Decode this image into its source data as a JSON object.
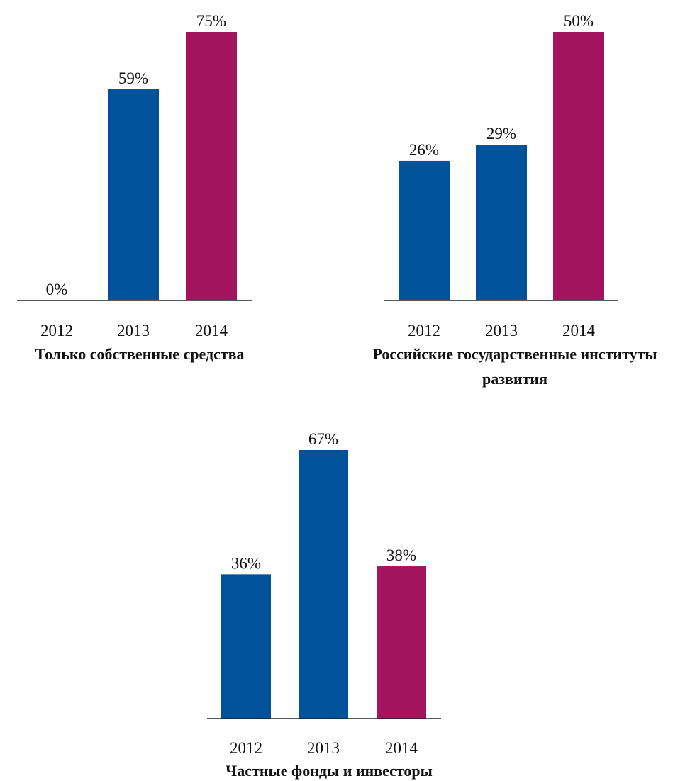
{
  "chart_data": [
    {
      "type": "bar",
      "title_lines": [
        "Только собственные средства"
      ],
      "categories": [
        "2012",
        "2013",
        "2014"
      ],
      "values": [
        0,
        59,
        75
      ],
      "value_labels": [
        "0%",
        "59%",
        "75%"
      ],
      "bar_colors": [
        "#00529b",
        "#00529b",
        "#a3145f"
      ],
      "ylim": [
        0,
        75
      ],
      "grid": false,
      "legend": "none"
    },
    {
      "type": "bar",
      "title_lines": [
        "Российские государственные институты",
        "развития"
      ],
      "categories": [
        "2012",
        "2013",
        "2014"
      ],
      "values": [
        26,
        29,
        50
      ],
      "value_labels": [
        "26%",
        "29%",
        "50%"
      ],
      "bar_colors": [
        "#00529b",
        "#00529b",
        "#a3145f"
      ],
      "ylim": [
        0,
        50
      ],
      "grid": false,
      "legend": "none"
    },
    {
      "type": "bar",
      "title_lines": [
        "Частные фонды и инвесторы"
      ],
      "categories": [
        "2012",
        "2013",
        "2014"
      ],
      "values": [
        36,
        67,
        38
      ],
      "value_labels": [
        "36%",
        "67%",
        "38%"
      ],
      "bar_colors": [
        "#00529b",
        "#00529b",
        "#a3145f"
      ],
      "ylim": [
        0,
        67
      ],
      "grid": false,
      "legend": "none"
    }
  ]
}
